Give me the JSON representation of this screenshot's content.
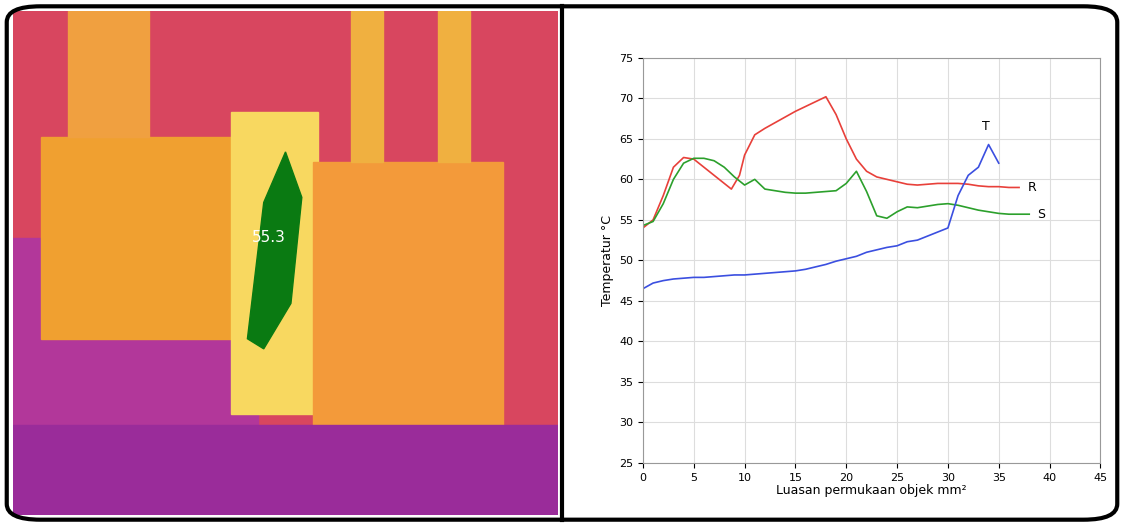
{
  "thermal_image": {
    "label": "55.3"
  },
  "chart_data": {
    "type": "line",
    "xlabel": "Luasan permukaan objek mm²",
    "ylabel": "Temperatur °C",
    "xlim": [
      0,
      45
    ],
    "xticks": [
      0,
      5,
      10,
      15,
      20,
      25,
      30,
      35,
      40,
      45
    ],
    "ylim": [
      25,
      75
    ],
    "yticks": [
      25,
      30,
      35,
      40,
      45,
      50,
      55,
      60,
      65,
      70,
      75
    ],
    "grid": true,
    "series": [
      {
        "name": "R",
        "color": "#e8403a",
        "x": [
          0,
          1,
          2,
          3,
          4,
          5,
          6,
          7,
          8,
          8.7,
          9.5,
          10,
          11,
          12,
          13,
          14,
          15,
          16,
          17,
          18,
          19,
          20,
          21,
          22,
          23,
          24,
          25,
          26,
          27,
          28,
          29,
          30,
          31,
          32,
          33,
          34,
          35,
          36,
          37
        ],
        "values": [
          54,
          55,
          58,
          61.5,
          62.7,
          62.5,
          61.5,
          60.5,
          59.5,
          58.8,
          60.5,
          63,
          65.5,
          66.3,
          67,
          67.7,
          68.4,
          69,
          69.6,
          70.2,
          68,
          65,
          62.5,
          61,
          60.3,
          60,
          59.7,
          59.4,
          59.3,
          59.4,
          59.5,
          59.5,
          59.5,
          59.4,
          59.2,
          59.1,
          59.1,
          59,
          59
        ]
      },
      {
        "name": "S",
        "color": "#2ca02c",
        "x": [
          0,
          1,
          2,
          3,
          4,
          5,
          6,
          7,
          8,
          9,
          10,
          11,
          12,
          13,
          14,
          15,
          16,
          17,
          18,
          19,
          20,
          21,
          22,
          23,
          24,
          25,
          26,
          27,
          28,
          29,
          30,
          31,
          32,
          33,
          34,
          35,
          36,
          37,
          38
        ],
        "values": [
          54.3,
          54.8,
          57,
          60,
          62,
          62.6,
          62.6,
          62.3,
          61.5,
          60.3,
          59.3,
          60,
          58.8,
          58.6,
          58.4,
          58.3,
          58.3,
          58.4,
          58.5,
          58.6,
          59.5,
          61,
          58.5,
          55.5,
          55.2,
          56,
          56.6,
          56.5,
          56.7,
          56.9,
          57,
          56.8,
          56.5,
          56.2,
          56,
          55.8,
          55.7,
          55.7,
          55.7
        ]
      },
      {
        "name": "T",
        "color": "#3b4fe0",
        "x": [
          0,
          1,
          2,
          3,
          4,
          5,
          6,
          7,
          8,
          9,
          10,
          11,
          12,
          13,
          14,
          15,
          16,
          17,
          18,
          19,
          20,
          21,
          22,
          23,
          24,
          25,
          26,
          27,
          28,
          29,
          30,
          31,
          32,
          33,
          34,
          35
        ],
        "values": [
          46.5,
          47.2,
          47.5,
          47.7,
          47.8,
          47.9,
          47.9,
          48,
          48.1,
          48.2,
          48.2,
          48.3,
          48.4,
          48.5,
          48.6,
          48.7,
          48.9,
          49.2,
          49.5,
          49.9,
          50.2,
          50.5,
          51,
          51.3,
          51.6,
          51.8,
          52.3,
          52.5,
          53,
          53.5,
          54,
          58,
          60.5,
          61.5,
          64.3,
          62
        ]
      }
    ]
  }
}
